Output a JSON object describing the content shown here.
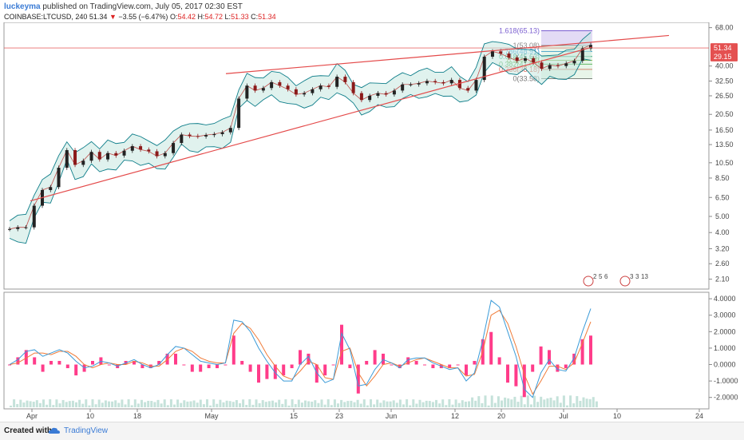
{
  "header": {
    "user": "luckeyma",
    "published": "published on TradingView.com, July 05, 2017 02:30 EST",
    "symbol": "COINBASE:LTCUSD, 240",
    "last": "51.34",
    "change_arrow": "▼",
    "change": "−3.55 (−6.47%)",
    "o_label": "O:",
    "o": "54.42",
    "h_label": "H:",
    "h": "54.72",
    "l_label": "L:",
    "l": "51.33",
    "c_label": "C:",
    "c": "51.34"
  },
  "footer": {
    "created_with": "Created with",
    "brand": "TradingView"
  },
  "colors": {
    "bollinger": "#0f7e8a",
    "trendline": "#e44a4a",
    "macd": "#3b9bd8",
    "signal": "#f07b38",
    "histogram": "#ff1a76",
    "fib_zone": "#8e6fd8",
    "price_label": "#e45050"
  },
  "chart_data": [
    {
      "type": "line",
      "name": "Price (log scale)",
      "ylim": [
        2,
        70
      ],
      "log_scale": true,
      "yticks": [
        "68.00",
        "51.34",
        "40.00",
        "32.50",
        "26.50",
        "20.50",
        "16.50",
        "13.50",
        "10.50",
        "8.50",
        "6.50",
        "5.00",
        "4.00",
        "3.20",
        "2.60",
        "2.10"
      ],
      "price_labels": [
        "51.34",
        "29.15"
      ],
      "xticks": [
        "Apr",
        "10",
        "18",
        "May",
        "15",
        "23",
        "Jun",
        "12",
        "20",
        "Jul",
        "10",
        "24"
      ],
      "close": [
        4.2,
        4.3,
        4.3,
        5.8,
        7.2,
        7.5,
        9.8,
        12.5,
        10.2,
        10.8,
        12.2,
        11.0,
        12.0,
        11.6,
        12.4,
        13.2,
        12.6,
        12.3,
        11.5,
        12.0,
        13.8,
        15.5,
        15.2,
        15.1,
        15.4,
        15.6,
        16.0,
        17.0,
        25.5,
        30.5,
        28.5,
        29.5,
        32.0,
        30.5,
        29.0,
        27.0,
        27.5,
        29.0,
        30.5,
        30.0,
        34.5,
        32.0,
        27.5,
        25.0,
        26.5,
        27.5,
        27.0,
        28.5,
        31.0,
        31.0,
        31.5,
        32.5,
        32.0,
        31.5,
        33.0,
        29.5,
        28.5,
        33.0,
        45.5,
        49.0,
        47.5,
        45.0,
        43.0,
        44.5,
        42.0,
        38.5,
        40.5,
        40.0,
        41.5,
        43.0,
        51.0,
        53.5
      ],
      "fib_levels": [
        {
          "label": "1.618(65.13)",
          "value": 65.13
        },
        {
          "label": "1(53.08)",
          "value": 53.08
        },
        {
          "label": "0.786(48.91)",
          "value": 48.91
        },
        {
          "label": "0.618(45.63)",
          "value": 45.63
        },
        {
          "label": "0.5(43.33)",
          "value": 43.33
        },
        {
          "label": "0.382(41.03)",
          "value": 41.03
        },
        {
          "label": "0.236(38.18)",
          "value": 38.18
        },
        {
          "label": "0(33.58)",
          "value": 33.58
        }
      ],
      "annotations": [
        "2",
        "5",
        "6",
        "3",
        "3",
        "13"
      ]
    },
    {
      "type": "line",
      "name": "MACD",
      "ylim": [
        -2.5,
        4.2
      ],
      "yticks": [
        "4.0000",
        "3.0000",
        "2.0000",
        "1.0000",
        "0.0000",
        "-1.0000",
        "-2.0000"
      ],
      "macd": [
        0.0,
        0.3,
        0.8,
        0.9,
        0.5,
        0.7,
        0.9,
        0.7,
        0.2,
        -0.2,
        -0.1,
        0.2,
        0.1,
        -0.1,
        0.1,
        0.3,
        0.0,
        -0.2,
        0.0,
        0.6,
        1.1,
        1.0,
        0.6,
        0.2,
        0.1,
        0.0,
        0.1,
        2.7,
        2.6,
        2.0,
        1.0,
        0.2,
        -0.5,
        -1.0,
        -1.0,
        0.0,
        0.5,
        -0.5,
        -1.1,
        -0.9,
        1.9,
        0.9,
        -1.3,
        -1.2,
        -0.3,
        0.3,
        0.1,
        -0.2,
        0.3,
        0.4,
        0.4,
        0.1,
        -0.1,
        -0.3,
        -0.2,
        -1.0,
        -0.5,
        1.5,
        3.9,
        3.5,
        2.0,
        0.5,
        -1.5,
        -2.0,
        -0.5,
        0.3,
        -0.3,
        -0.4,
        0.4,
        2.0,
        3.4
      ],
      "signal": [
        0.0,
        0.1,
        0.4,
        0.7,
        0.7,
        0.6,
        0.8,
        0.8,
        0.5,
        0.0,
        -0.2,
        0.0,
        0.1,
        0.0,
        0.0,
        0.2,
        0.1,
        -0.1,
        -0.1,
        0.3,
        0.8,
        1.0,
        0.8,
        0.4,
        0.2,
        0.1,
        0.1,
        1.9,
        2.5,
        2.2,
        1.5,
        0.6,
        -0.1,
        -0.7,
        -0.9,
        -0.4,
        0.2,
        0.0,
        -0.8,
        -0.9,
        0.8,
        1.0,
        -0.5,
        -1.3,
        -0.7,
        0.0,
        0.1,
        -0.1,
        0.1,
        0.3,
        0.4,
        0.2,
        0.0,
        -0.2,
        -0.2,
        -0.7,
        -0.6,
        0.8,
        3.0,
        3.3,
        2.5,
        1.1,
        -0.6,
        -1.8,
        -1.0,
        -0.1,
        -0.1,
        -0.3,
        0.1,
        1.3,
        2.6
      ]
    }
  ]
}
